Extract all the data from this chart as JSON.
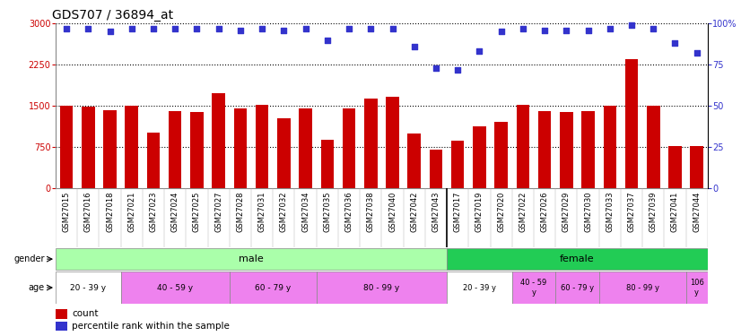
{
  "title": "GDS707 / 36894_at",
  "samples": [
    "GSM27015",
    "GSM27016",
    "GSM27018",
    "GSM27021",
    "GSM27023",
    "GSM27024",
    "GSM27025",
    "GSM27027",
    "GSM27028",
    "GSM27031",
    "GSM27032",
    "GSM27034",
    "GSM27035",
    "GSM27036",
    "GSM27038",
    "GSM27040",
    "GSM27042",
    "GSM27043",
    "GSM27017",
    "GSM27019",
    "GSM27020",
    "GSM27022",
    "GSM27026",
    "GSM27029",
    "GSM27030",
    "GSM27033",
    "GSM27037",
    "GSM27039",
    "GSM27041",
    "GSM27044"
  ],
  "counts": [
    1510,
    1480,
    1420,
    1500,
    1020,
    1400,
    1380,
    1730,
    1450,
    1520,
    1280,
    1450,
    880,
    1460,
    1640,
    1660,
    1000,
    700,
    870,
    1130,
    1210,
    1520,
    1400,
    1380,
    1400,
    1500,
    2350,
    1500,
    760,
    775
  ],
  "percentiles": [
    97,
    97,
    95,
    97,
    97,
    97,
    97,
    97,
    96,
    97,
    96,
    97,
    90,
    97,
    97,
    97,
    86,
    73,
    72,
    83,
    95,
    97,
    96,
    96,
    96,
    97,
    99,
    97,
    88,
    82
  ],
  "ylim_left": [
    0,
    3000
  ],
  "ylim_right": [
    0,
    100
  ],
  "yticks_left": [
    0,
    750,
    1500,
    2250,
    3000
  ],
  "yticks_right": [
    0,
    25,
    50,
    75,
    100
  ],
  "bar_color": "#cc0000",
  "dot_color": "#3333cc",
  "gender_male_color": "#aaffaa",
  "gender_female_color": "#22cc55",
  "male_count": 18,
  "female_count": 12,
  "male_age_groups": [
    {
      "label": "20 - 39 y",
      "start": 0,
      "end": 3,
      "color": "#ffffff"
    },
    {
      "label": "40 - 59 y",
      "start": 3,
      "end": 8,
      "color": "#ee82ee"
    },
    {
      "label": "60 - 79 y",
      "start": 8,
      "end": 12,
      "color": "#ee82ee"
    },
    {
      "label": "80 - 99 y",
      "start": 12,
      "end": 18,
      "color": "#ee82ee"
    }
  ],
  "female_age_groups": [
    {
      "label": "20 - 39 y",
      "start": 18,
      "end": 21,
      "color": "#ffffff"
    },
    {
      "label": "40 - 59\ny",
      "start": 21,
      "end": 23,
      "color": "#ee82ee"
    },
    {
      "label": "60 - 79 y",
      "start": 23,
      "end": 25,
      "color": "#ee82ee"
    },
    {
      "label": "80 - 99 y",
      "start": 25,
      "end": 29,
      "color": "#ee82ee"
    },
    {
      "label": "106\ny",
      "start": 29,
      "end": 30,
      "color": "#ee82ee"
    }
  ],
  "bg_color": "#ffffff",
  "tick_label_size": 6.0,
  "title_fontsize": 10,
  "legend_count_color": "#cc0000",
  "legend_dot_color": "#3333cc",
  "xtick_bg_color": "#dddddd"
}
